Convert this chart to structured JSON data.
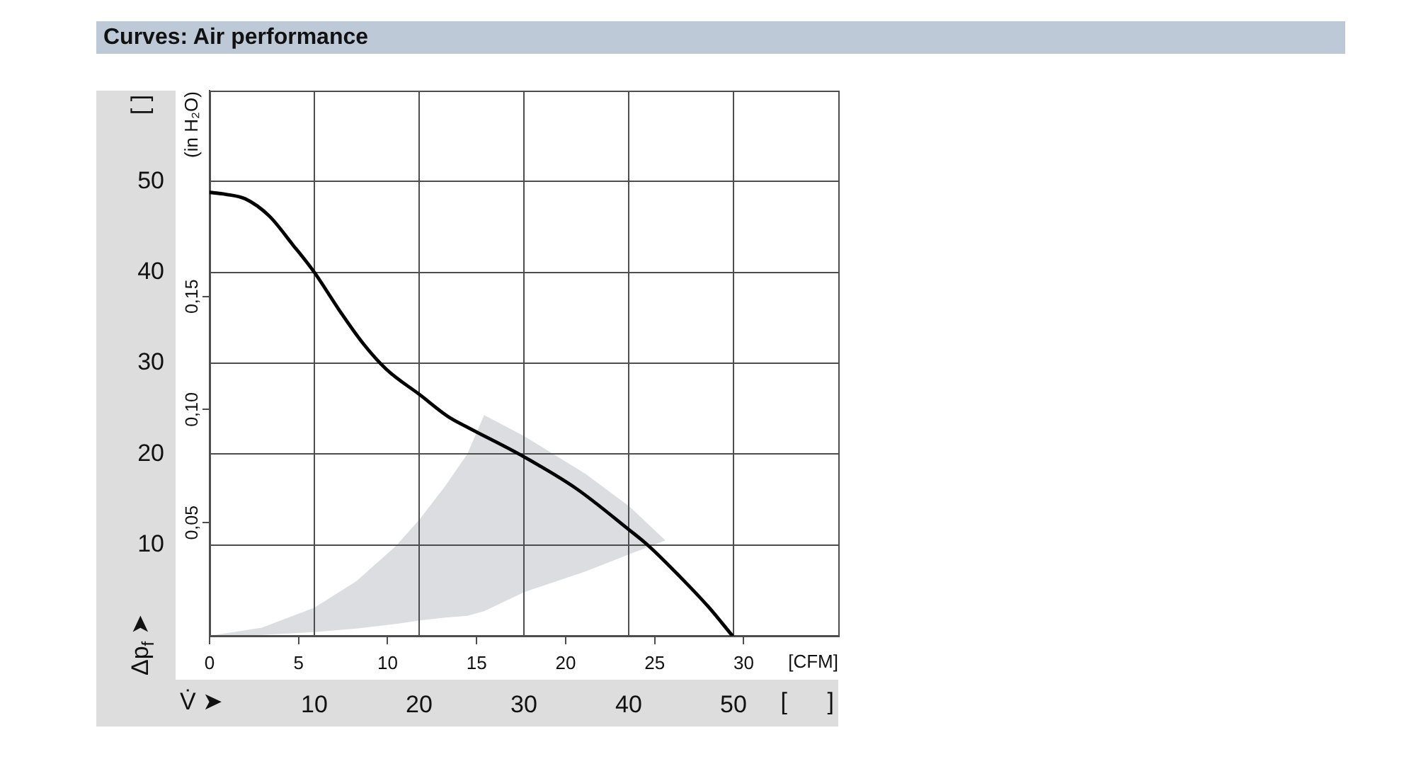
{
  "chart_data": {
    "type": "line",
    "title": "Curves: Air performance",
    "xlabel": "V̇ ➤",
    "ylabel": "Δp$_{f}$ ➤",
    "x2label": "[CFM]",
    "y2label": "(in H₂O)",
    "annotations": [
      "[ ]",
      "[      ]"
    ],
    "xlim": [
      0,
      60
    ],
    "xticks": [
      10,
      20,
      30,
      40,
      50
    ],
    "ylim": [
      0,
      60
    ],
    "yticks": [
      10,
      20,
      30,
      40,
      50
    ],
    "x2lim": [
      0,
      35.31
    ],
    "x2ticks": [
      0,
      5,
      10,
      15,
      20,
      25,
      30
    ],
    "y2lim": [
      0,
      0.241
    ],
    "y2ticks": [
      {
        "value": 0.05,
        "label": "0,05"
      },
      {
        "value": 0.1,
        "label": "0,10"
      },
      {
        "value": 0.15,
        "label": "0,15"
      }
    ],
    "grid": true,
    "marker": "none",
    "line_style": "solid",
    "series": [
      {
        "type": "area",
        "color": "#dcdde0",
        "x": [
          0,
          5,
          10,
          14,
          17.8,
          20.1,
          22.5,
          24.6,
          26.2,
          30,
          35.9,
          40.1,
          43.5
        ],
        "values": [
          null,
          null,
          null,
          null,
          null,
          null,
          null,
          null,
          null,
          null,
          null,
          null,
          null
        ],
        "upper": [
          0,
          0.9,
          3.1,
          6,
          9.9,
          12.9,
          16.5,
          20,
          24.3,
          22,
          17.8,
          14.2,
          10.5
        ],
        "lower": [
          0,
          0.1,
          0.4,
          0.8,
          1.3,
          1.7,
          2,
          2.2,
          2.7,
          4.8,
          7.1,
          9,
          10.5
        ]
      },
      {
        "type": "line",
        "color": "#000000",
        "x": [
          0,
          1.5,
          3.4,
          5.7,
          7.9,
          10,
          12.4,
          14.7,
          16.9,
          20.1,
          22.8,
          24.7,
          30,
          35,
          40,
          41.9,
          44.9,
          47.6,
          49.9
        ],
        "values": [
          48.8,
          48.6,
          48.1,
          46.2,
          43.1,
          40,
          35.8,
          32.1,
          29.3,
          26.5,
          24.1,
          22.9,
          19.7,
          16.2,
          11.7,
          9.9,
          6.5,
          3.2,
          0
        ]
      }
    ]
  }
}
